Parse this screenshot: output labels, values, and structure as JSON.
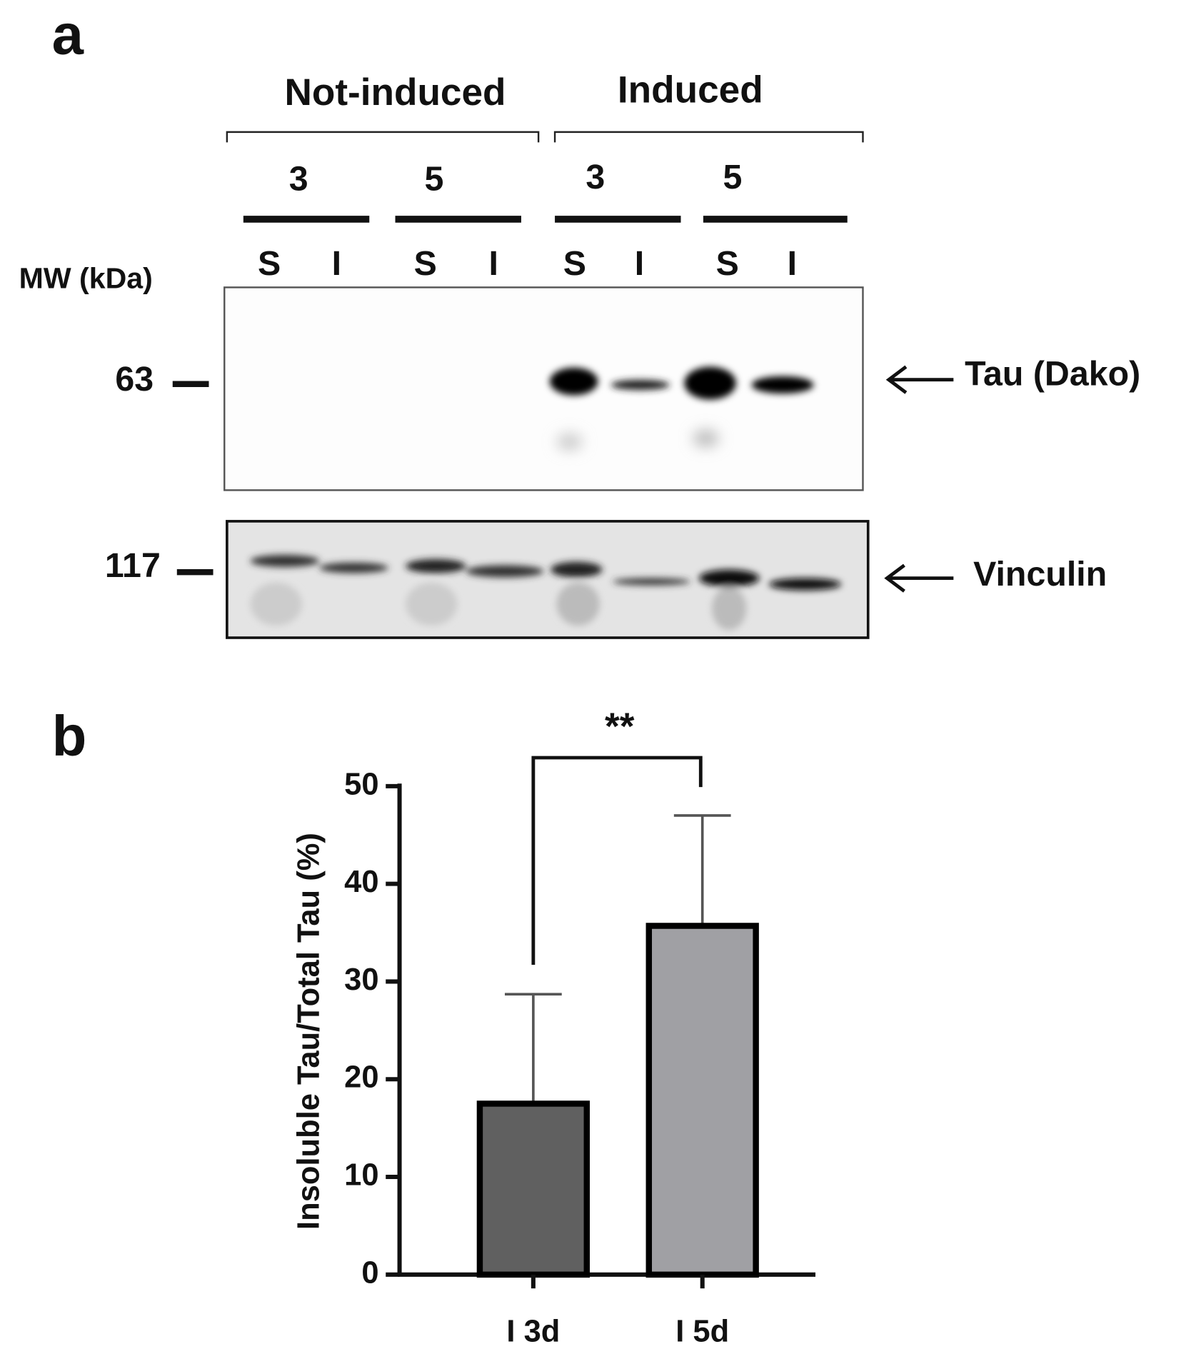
{
  "panel_a": {
    "label": "a",
    "groups": [
      {
        "label": "Not-induced",
        "days": [
          {
            "label": "3",
            "lanes": [
              "S",
              "I"
            ]
          },
          {
            "label": "5",
            "lanes": [
              "S",
              "I"
            ]
          }
        ]
      },
      {
        "label": "Induced",
        "days": [
          {
            "label": "3",
            "lanes": [
              "S",
              "I"
            ]
          },
          {
            "label": "5",
            "lanes": [
              "S",
              "I"
            ]
          }
        ]
      }
    ],
    "mw_title": "MW (kDa)",
    "markers": [
      {
        "mw": "63",
        "protein": "Tau (Dako)"
      },
      {
        "mw": "117",
        "protein": "Vinculin"
      }
    ]
  },
  "chart_data": {
    "type": "bar",
    "panel_label": "b",
    "ylabel": "Insoluble Tau/Total Tau  (%)",
    "categories": [
      "I 3d",
      "I 5d"
    ],
    "values": [
      17.5,
      35.7
    ],
    "errors": [
      11.2,
      11.3
    ],
    "colors": [
      "#606060",
      "#a0a0a4"
    ],
    "ylim": [
      0,
      50
    ],
    "yticks": [
      0,
      10,
      20,
      30,
      40,
      50
    ],
    "significance": "**"
  }
}
